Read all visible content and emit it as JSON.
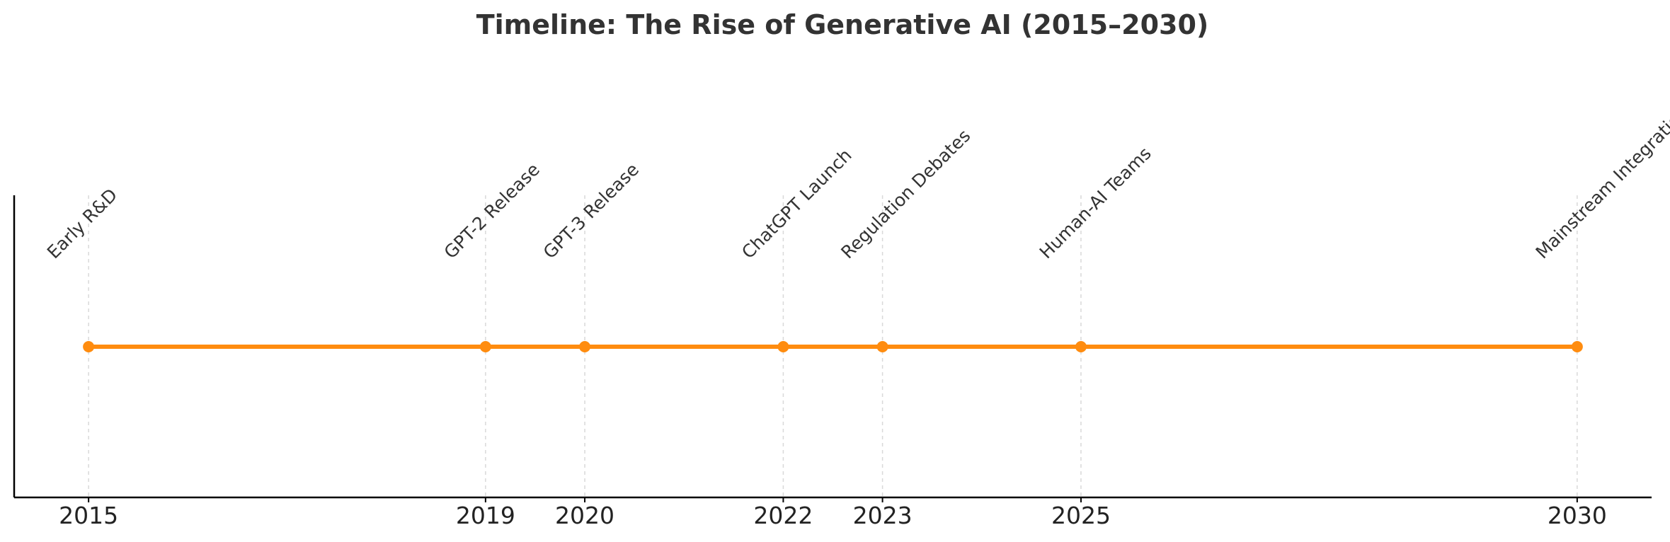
{
  "chart_data": {
    "type": "timeline",
    "title": "Timeline: The Rise of Generative AI (2015–2030)",
    "xlabel": "",
    "ylabel": "",
    "xlim": [
      2014.25,
      2030.75
    ],
    "grid": "vertical dashed at events",
    "line_color": "#ff8c0f",
    "grid_color": "#d9d9d9",
    "axis_color": "#000000",
    "events": [
      {
        "year": 2015,
        "label": "Early R&D"
      },
      {
        "year": 2019,
        "label": "GPT-2 Release"
      },
      {
        "year": 2020,
        "label": "GPT-3 Release"
      },
      {
        "year": 2022,
        "label": "ChatGPT Launch"
      },
      {
        "year": 2023,
        "label": "Regulation Debates"
      },
      {
        "year": 2025,
        "label": "Human-AI Teams"
      },
      {
        "year": 2030,
        "label": "Mainstream Integration"
      }
    ]
  }
}
